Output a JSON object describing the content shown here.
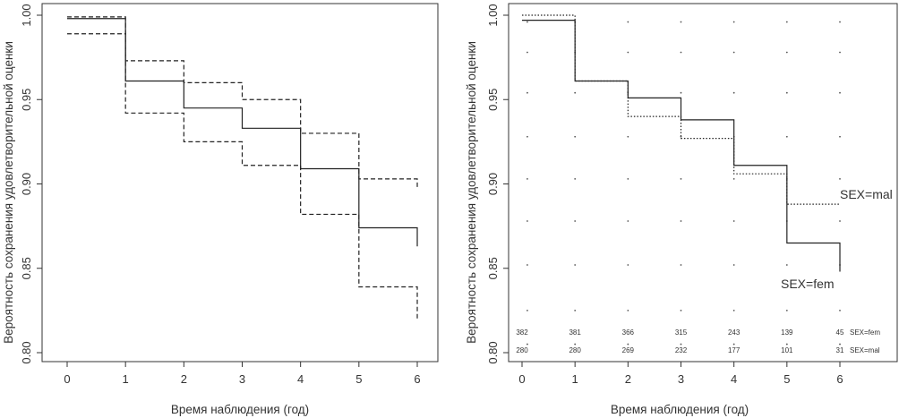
{
  "chart_data": [
    {
      "type": "line",
      "title": "",
      "xlabel": "Время наблюдения (год)",
      "ylabel": "Вероятность сохранения удовлетворительной оценки",
      "xlim": [
        0,
        6
      ],
      "ylim": [
        0.8,
        1.0
      ],
      "x_ticks": [
        "0",
        "1",
        "2",
        "3",
        "4",
        "5",
        "6"
      ],
      "y_ticks": [
        "0.80",
        "0.85",
        "0.90",
        "0.95",
        "1.00"
      ],
      "grid": false,
      "series": [
        {
          "style": "solid",
          "x": [
            0,
            1,
            2,
            3,
            4,
            5,
            6
          ],
          "y": [
            0.998,
            0.961,
            0.945,
            0.933,
            0.909,
            0.874,
            0.863
          ]
        },
        {
          "style": "dashed",
          "x": [
            0,
            1,
            2,
            3,
            4,
            5,
            6
          ],
          "y": [
            0.999,
            0.973,
            0.96,
            0.95,
            0.93,
            0.903,
            0.898
          ]
        },
        {
          "style": "dashed",
          "x": [
            0,
            1,
            2,
            3,
            4,
            5,
            6
          ],
          "y": [
            0.989,
            0.942,
            0.925,
            0.911,
            0.882,
            0.839,
            0.82
          ]
        }
      ]
    },
    {
      "type": "line",
      "title": "",
      "xlabel": "Время наблюдения (год)",
      "ylabel": "Вероятность сохранения удовлетворительной оценки",
      "xlim": [
        0,
        6
      ],
      "ylim": [
        0.8,
        1.0
      ],
      "x_ticks": [
        "0",
        "1",
        "2",
        "3",
        "4",
        "5",
        "6"
      ],
      "y_ticks": [
        "0.80",
        "0.85",
        "0.90",
        "0.95",
        "1.00"
      ],
      "grid": true,
      "series": [
        {
          "name": "SEX=fem",
          "style": "solid",
          "x": [
            0,
            1,
            2,
            3,
            4,
            5,
            6
          ],
          "y": [
            0.997,
            0.961,
            0.951,
            0.938,
            0.911,
            0.865,
            0.848
          ]
        },
        {
          "name": "SEX=mal",
          "style": "dotted",
          "x": [
            0,
            1,
            2,
            3,
            4,
            5,
            6
          ],
          "y": [
            1.0,
            0.961,
            0.94,
            0.927,
            0.906,
            0.888,
            0.888
          ]
        }
      ],
      "risk_table": [
        {
          "name": "SEX=fem",
          "values": [
            "382",
            "381",
            "366",
            "315",
            "243",
            "139",
            "45"
          ]
        },
        {
          "name": "SEX=mal",
          "values": [
            "280",
            "280",
            "269",
            "232",
            "177",
            "101",
            "31"
          ]
        }
      ]
    }
  ]
}
